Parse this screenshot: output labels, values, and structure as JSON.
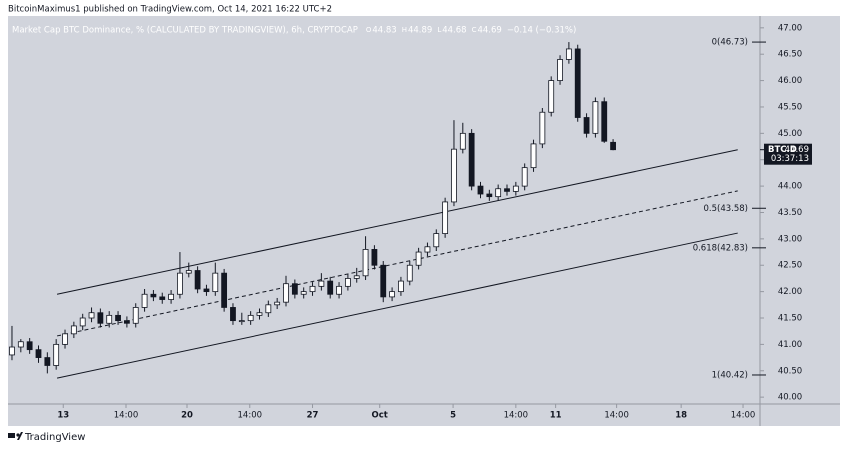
{
  "header": {
    "text": "BitcoinMaximus1 published on TradingView.com, Oct 14, 2021 16:22 UTC+2"
  },
  "footer": {
    "brand": "TradingView"
  },
  "chart_data": {
    "type": "candlestick",
    "title": "Market Cap BTC Dominance, % (CALCULATED BY TRADINGVIEW), 6h, CRYPTOCAP",
    "legend_values": [
      {
        "key": "O",
        "value": 44.83
      },
      {
        "key": "H",
        "value": 44.89
      },
      {
        "key": "L",
        "value": 44.68
      },
      {
        "key": "C",
        "value": 44.69
      }
    ],
    "change": "−0.14 (−0.31%)",
    "up_color": "#ffffff",
    "down_color": "#131722",
    "outline_color": "#131722",
    "ohlc": [
      [
        40.8,
        41.35,
        40.7,
        40.95
      ],
      [
        40.95,
        41.1,
        40.85,
        41.05
      ],
      [
        41.05,
        41.12,
        40.82,
        40.9
      ],
      [
        40.9,
        40.98,
        40.65,
        40.75
      ],
      [
        40.75,
        40.85,
        40.45,
        40.6
      ],
      [
        40.6,
        41.1,
        40.52,
        41.0
      ],
      [
        41.0,
        41.28,
        40.92,
        41.2
      ],
      [
        41.2,
        41.43,
        41.12,
        41.35
      ],
      [
        41.35,
        41.58,
        41.27,
        41.5
      ],
      [
        41.5,
        41.7,
        41.42,
        41.6
      ],
      [
        41.6,
        41.68,
        41.32,
        41.4
      ],
      [
        41.4,
        41.63,
        41.32,
        41.55
      ],
      [
        41.55,
        41.63,
        41.37,
        41.45
      ],
      [
        41.45,
        41.53,
        41.32,
        41.4
      ],
      [
        41.4,
        41.78,
        41.32,
        41.7
      ],
      [
        41.7,
        42.05,
        41.62,
        41.95
      ],
      [
        41.95,
        42.03,
        41.82,
        41.9
      ],
      [
        41.9,
        41.98,
        41.77,
        41.85
      ],
      [
        41.85,
        42.03,
        41.77,
        41.95
      ],
      [
        41.95,
        42.75,
        41.87,
        42.35
      ],
      [
        42.35,
        42.55,
        42.27,
        42.4
      ],
      [
        42.4,
        42.48,
        41.97,
        42.05
      ],
      [
        42.05,
        42.13,
        41.92,
        42.0
      ],
      [
        42.0,
        42.55,
        41.92,
        42.35
      ],
      [
        42.35,
        42.43,
        41.62,
        41.7
      ],
      [
        41.7,
        41.78,
        41.37,
        41.45
      ],
      [
        41.45,
        41.6,
        41.37,
        41.45
      ],
      [
        41.45,
        41.63,
        41.37,
        41.55
      ],
      [
        41.55,
        41.68,
        41.47,
        41.6
      ],
      [
        41.6,
        41.83,
        41.52,
        41.75
      ],
      [
        41.75,
        41.88,
        41.67,
        41.8
      ],
      [
        41.8,
        42.3,
        41.72,
        42.15
      ],
      [
        42.15,
        42.23,
        41.87,
        41.95
      ],
      [
        41.95,
        42.08,
        41.87,
        42.0
      ],
      [
        42.0,
        42.18,
        41.92,
        42.1
      ],
      [
        42.1,
        42.35,
        42.02,
        42.2
      ],
      [
        42.2,
        42.28,
        41.87,
        41.95
      ],
      [
        41.95,
        42.18,
        41.87,
        42.1
      ],
      [
        42.1,
        42.33,
        42.02,
        42.25
      ],
      [
        42.25,
        42.45,
        42.17,
        42.3
      ],
      [
        42.3,
        43.05,
        42.22,
        42.8
      ],
      [
        42.8,
        42.88,
        42.42,
        42.5
      ],
      [
        42.5,
        42.58,
        41.8,
        41.9
      ],
      [
        41.9,
        42.08,
        41.82,
        42.0
      ],
      [
        42.0,
        42.28,
        41.92,
        42.2
      ],
      [
        42.2,
        42.58,
        42.12,
        42.5
      ],
      [
        42.5,
        42.83,
        42.42,
        42.75
      ],
      [
        42.75,
        42.93,
        42.67,
        42.85
      ],
      [
        42.85,
        43.18,
        42.77,
        43.1
      ],
      [
        43.1,
        43.78,
        43.02,
        43.7
      ],
      [
        43.7,
        45.25,
        43.62,
        44.7
      ],
      [
        44.7,
        45.2,
        44.62,
        45.0
      ],
      [
        45.0,
        45.08,
        43.92,
        44.0
      ],
      [
        44.0,
        44.08,
        43.77,
        43.85
      ],
      [
        43.85,
        43.93,
        43.72,
        43.8
      ],
      [
        43.8,
        44.03,
        43.72,
        43.95
      ],
      [
        43.95,
        44.03,
        43.82,
        43.9
      ],
      [
        43.9,
        44.08,
        43.82,
        44.0
      ],
      [
        44.0,
        44.43,
        43.92,
        44.35
      ],
      [
        44.35,
        44.88,
        44.27,
        44.8
      ],
      [
        44.8,
        45.48,
        44.72,
        45.4
      ],
      [
        45.4,
        46.08,
        45.32,
        46.0
      ],
      [
        46.0,
        46.48,
        45.92,
        46.4
      ],
      [
        46.4,
        46.73,
        46.32,
        46.6
      ],
      [
        46.6,
        46.68,
        45.22,
        45.3
      ],
      [
        45.3,
        45.38,
        44.92,
        45.0
      ],
      [
        45.0,
        45.68,
        44.92,
        45.6
      ],
      [
        45.6,
        45.68,
        44.82,
        44.85
      ],
      [
        44.83,
        44.89,
        44.68,
        44.69
      ]
    ],
    "xlim": [
      -0.45,
      84.62
    ],
    "xticks": [
      {
        "value": 5.8,
        "label": "13"
      },
      {
        "value": 12.9,
        "label": "14:00"
      },
      {
        "value": 19.8,
        "label": "20"
      },
      {
        "value": 26.9,
        "label": "14:00"
      },
      {
        "value": 34.0,
        "label": "27"
      },
      {
        "value": 41.6,
        "label": "Oct"
      },
      {
        "value": 49.9,
        "label": "5"
      },
      {
        "value": 57.0,
        "label": "14:00"
      },
      {
        "value": 61.5,
        "label": "11"
      },
      {
        "value": 68.4,
        "label": "14:00"
      },
      {
        "value": 75.7,
        "label": "18"
      },
      {
        "value": 82.7,
        "label": "14:00"
      }
    ],
    "ylim": [
      39.87,
      47.3
    ],
    "yticks": [
      {
        "value": 40,
        "label": "40.00"
      },
      {
        "value": 40.5,
        "label": "40.50"
      },
      {
        "value": 41,
        "label": "41.00"
      },
      {
        "value": 41.5,
        "label": "41.50"
      },
      {
        "value": 42,
        "label": "42.00"
      },
      {
        "value": 42.5,
        "label": "42.50"
      },
      {
        "value": 43,
        "label": "43.00"
      },
      {
        "value": 43.5,
        "label": "43.50"
      },
      {
        "value": 44,
        "label": "44.00"
      },
      {
        "value": 44.5,
        "label": "44.50"
      },
      {
        "value": 45,
        "label": "45.00"
      },
      {
        "value": 45.5,
        "label": "45.50"
      },
      {
        "value": 46,
        "label": "46.00"
      },
      {
        "value": 46.5,
        "label": "46.50"
      },
      {
        "value": 47,
        "label": "47.00"
      }
    ],
    "lines": [
      {
        "x": [
          5.1,
          82.1
        ],
        "y": [
          41.95,
          44.69
        ],
        "style": "solid"
      },
      {
        "x": [
          5.1,
          82.1
        ],
        "y": [
          41.16,
          43.91
        ],
        "style": "dashed"
      },
      {
        "x": [
          5.1,
          82.1
        ],
        "y": [
          40.36,
          43.11
        ],
        "style": "solid"
      }
    ],
    "fib_levels": [
      {
        "label": "0(46.73)",
        "value": 46.73
      },
      {
        "label": "0.5(43.58)",
        "value": 43.58
      },
      {
        "label": "0.618(42.83)",
        "value": 42.83
      },
      {
        "label": "1(40.42)",
        "value": 40.42
      }
    ],
    "last_price": {
      "symbol": "BTC.D",
      "value": 44.69,
      "countdown": "03:37:13"
    }
  }
}
